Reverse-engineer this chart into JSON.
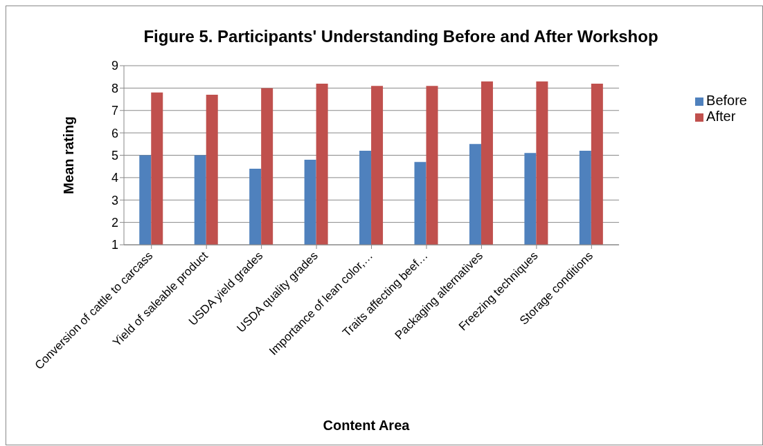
{
  "chart_data": {
    "type": "bar",
    "title": "Figure 5. Participants' Understanding Before and After Workshop",
    "xlabel": "Content Area",
    "ylabel": "Mean rating",
    "categories": [
      "Conversion of cattle to carcass",
      "Yield of saleable product",
      "USDA yield grades",
      "USDA quality grades",
      "Importance of lean color,…",
      "Traits affecting beef…",
      "Packaging alternatives",
      "Freezing techniques",
      "Storage conditions"
    ],
    "series": [
      {
        "name": "Before",
        "color": "#4f81bd",
        "values": [
          5.0,
          5.0,
          4.4,
          4.8,
          5.2,
          4.7,
          5.5,
          5.1,
          5.2
        ]
      },
      {
        "name": "After",
        "color": "#c0504d",
        "values": [
          7.8,
          7.7,
          8.0,
          8.2,
          8.1,
          8.1,
          8.3,
          8.3,
          8.2
        ]
      }
    ],
    "ylim": [
      1,
      9
    ],
    "yticks": [
      1,
      2,
      3,
      4,
      5,
      6,
      7,
      8,
      9
    ],
    "grid": "y",
    "legend": "right"
  }
}
